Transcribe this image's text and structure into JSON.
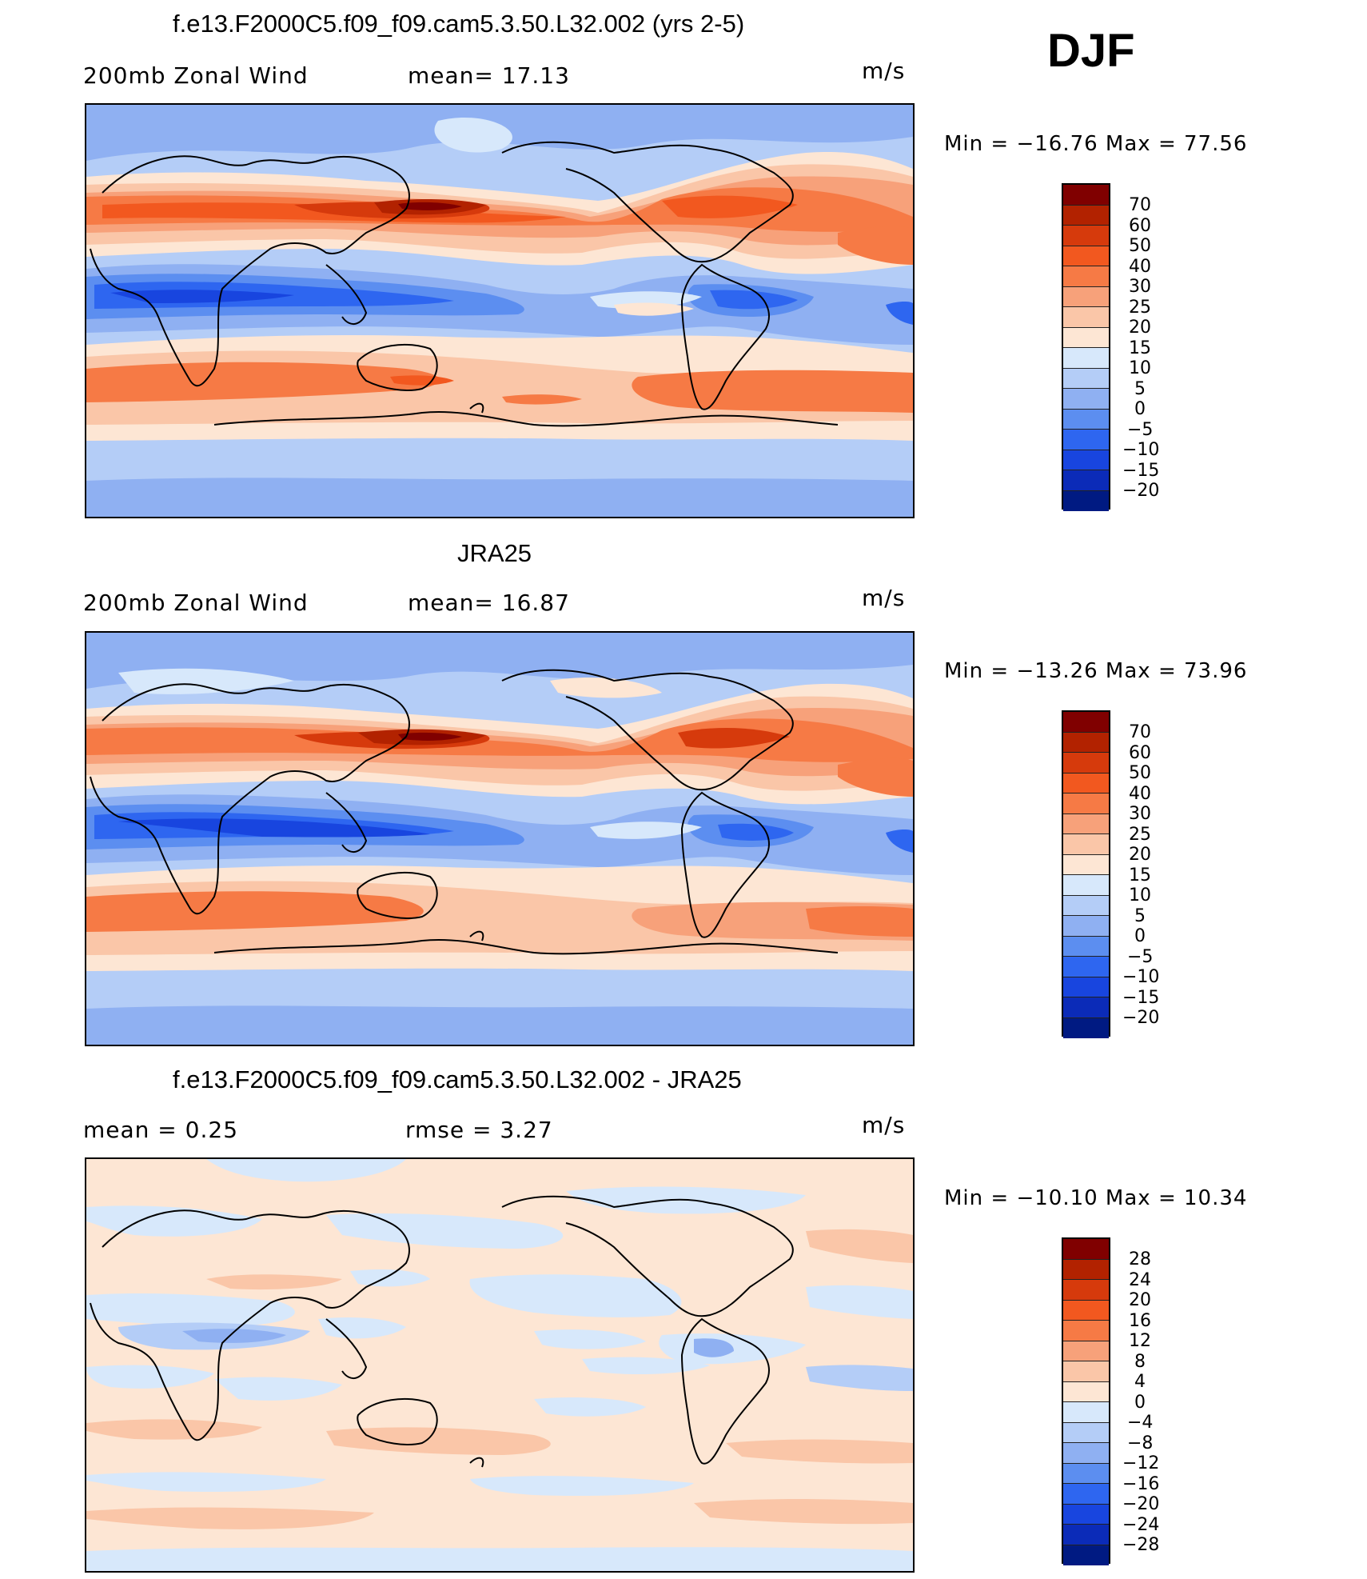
{
  "season": "DJF",
  "panels": [
    {
      "title": "f.e13.F2000C5.f09_f09.cam5.3.50.L32.002 (yrs 2-5)",
      "left_label": "200mb Zonal Wind",
      "stat1": "mean=  17.13",
      "units": "m/s",
      "minmax": "Min = −16.76 Max =  77.56",
      "type": "field"
    },
    {
      "title": "JRA25",
      "left_label": "200mb Zonal Wind",
      "stat1": "mean=  16.87",
      "units": "m/s",
      "minmax": "Min = −13.26 Max =  73.96",
      "type": "field"
    },
    {
      "title": "f.e13.F2000C5.f09_f09.cam5.3.50.L32.002 - JRA25",
      "left_label": "mean =    0.25",
      "stat1": "rmse =    3.27",
      "units": "m/s",
      "minmax": "Min = −10.10 Max =  10.34",
      "type": "diff"
    }
  ],
  "colorbars": {
    "field": {
      "labels": [
        "70",
        "60",
        "50",
        "40",
        "30",
        "25",
        "20",
        "15",
        "10",
        "5",
        "0",
        "−5",
        "−10",
        "−15",
        "−20"
      ],
      "colors": [
        "#800000",
        "#b22200",
        "#d63a0c",
        "#f2581f",
        "#f67a45",
        "#f7a17a",
        "#fac6a8",
        "#fde6d4",
        "#d7e8fb",
        "#b4cdf7",
        "#8fb0f2",
        "#5c8ef0",
        "#2e66f0",
        "#1845df",
        "#0b2bb8",
        "#001a82"
      ]
    },
    "diff": {
      "labels": [
        "28",
        "24",
        "20",
        "16",
        "12",
        "8",
        "4",
        "0",
        "−4",
        "−8",
        "−12",
        "−16",
        "−20",
        "−24",
        "−28"
      ],
      "colors": [
        "#800000",
        "#b22200",
        "#d63a0c",
        "#f2581f",
        "#f67a45",
        "#f7a17a",
        "#fac6a8",
        "#fde6d4",
        "#d7e8fb",
        "#b4cdf7",
        "#8fb0f2",
        "#5c8ef0",
        "#2e66f0",
        "#1845df",
        "#0b2bb8",
        "#001a82"
      ]
    }
  }
}
